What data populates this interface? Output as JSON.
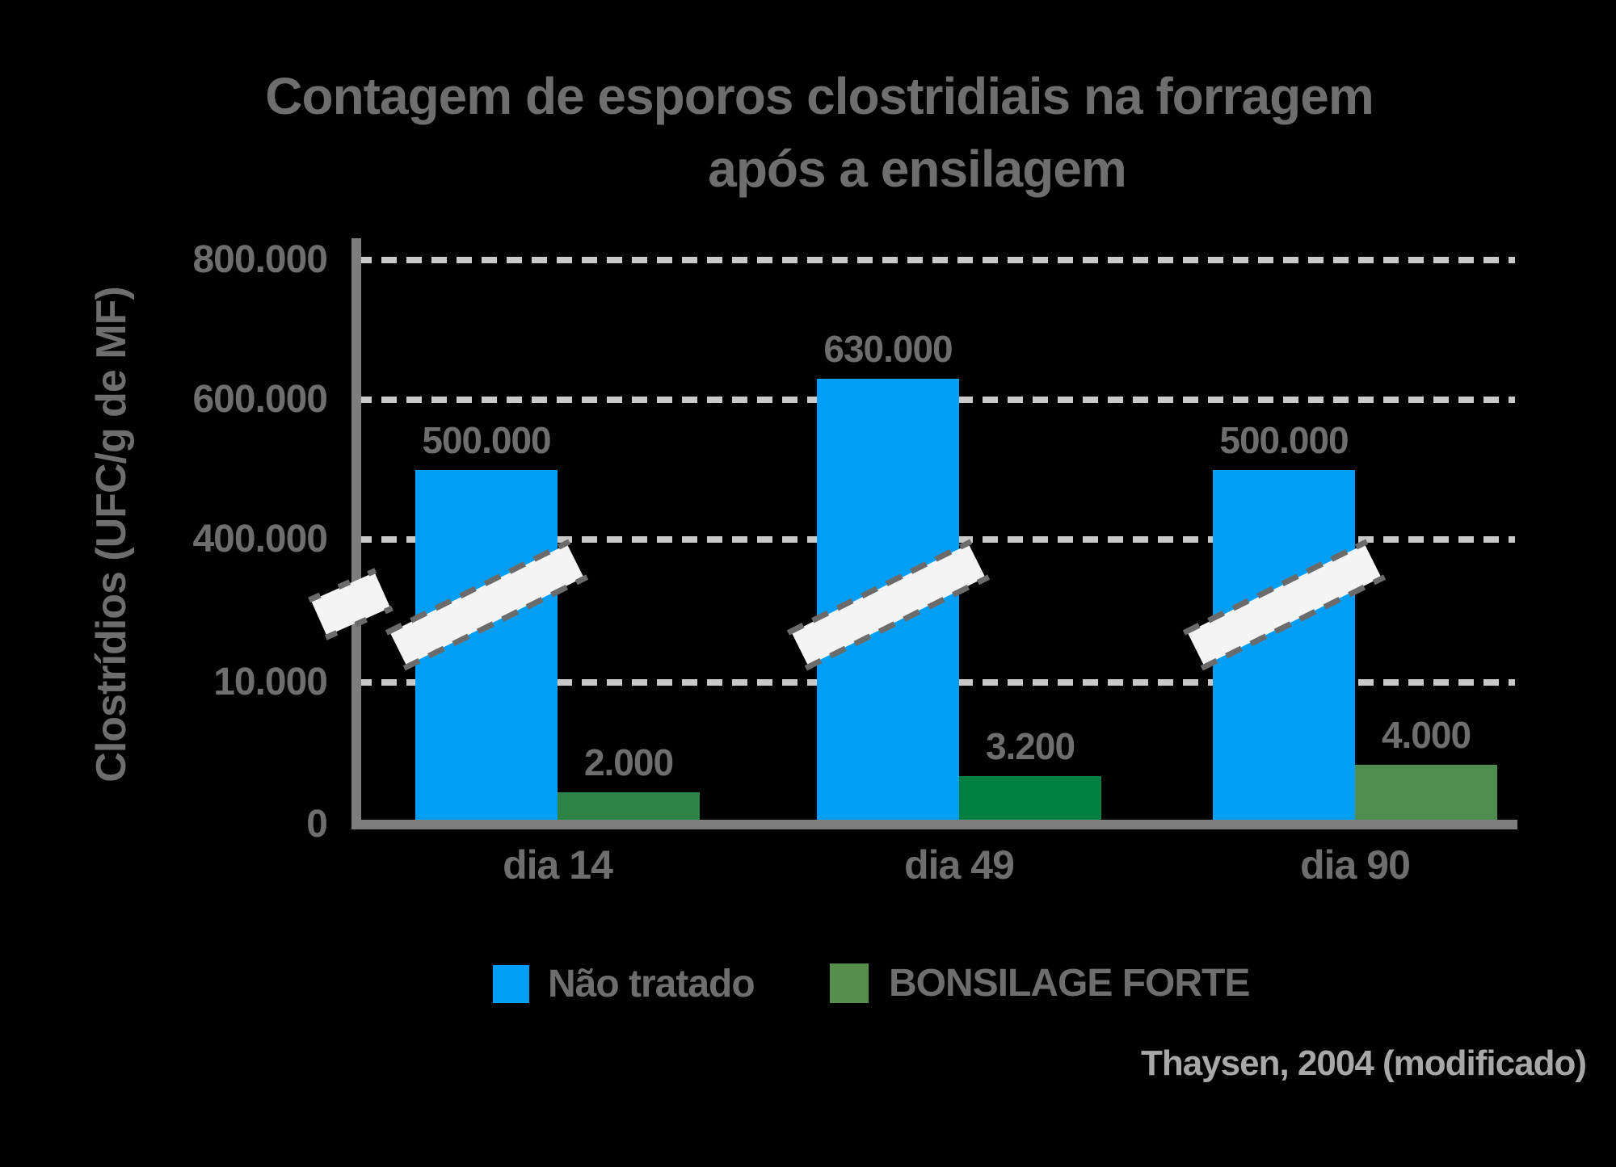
{
  "title": {
    "line1": "Contagem de esporos clostridiais na forragem",
    "line2": "após a ensilagem"
  },
  "axes": {
    "y_label": "Clostrídios (UFC/g de MF)",
    "y_ticks": [
      "800.000",
      "600.000",
      "400.000",
      "10.000",
      "0"
    ],
    "x_ticks": [
      "dia 14",
      "dia 49",
      "dia 90"
    ]
  },
  "legend": [
    {
      "label": "Não tratado",
      "color": "#009FF5"
    },
    {
      "label": "BONSILAGE FORTE",
      "color": "#588E4C"
    }
  ],
  "source": "Thaysen, 2004 (modificado)",
  "colors": {
    "background": "#000000",
    "text": "#6E6E6E",
    "source_text": "#A8A8A8",
    "axis": "#7D7D7D",
    "gridline": "#C9C9C9",
    "break_band": "#F4F4F4",
    "break_band_border": "#6B6B6B",
    "blue_bar": "#009FF5",
    "green_bars": [
      "#2E8348",
      "#008040",
      "#4E8C50"
    ]
  },
  "chart_data": {
    "type": "bar",
    "title": "Contagem de esporos clostridiais na forragem após a ensilagem",
    "categories": [
      "dia 14",
      "dia 49",
      "dia 90"
    ],
    "series": [
      {
        "name": "Não tratado",
        "values": [
          500000,
          630000,
          500000
        ],
        "labels": [
          "500.000",
          "630.000",
          "500.000"
        ],
        "color": "#009FF5"
      },
      {
        "name": "BONSILAGE FORTE",
        "values": [
          2000,
          3200,
          4000
        ],
        "labels": [
          "2.000",
          "3.200",
          "4.000"
        ],
        "colors": [
          "#2E8348",
          "#008040",
          "#4E8C50"
        ]
      }
    ],
    "xlabel": "",
    "ylabel": "Clostrídios (UFC/g de MF)",
    "y_axis": {
      "tick_values": [
        0,
        10000,
        400000,
        600000,
        800000
      ],
      "tick_labels": [
        "0",
        "10.000",
        "400.000",
        "600.000",
        "800.000"
      ],
      "broken_axis": true,
      "break_between": [
        10000,
        400000
      ]
    },
    "grid": "horizontal dashed",
    "legend_position": "bottom",
    "annotations": "white diagonal axis-break bands cross the y-axis and each blue bar between the 10.000 and 400.000 gridlines"
  }
}
